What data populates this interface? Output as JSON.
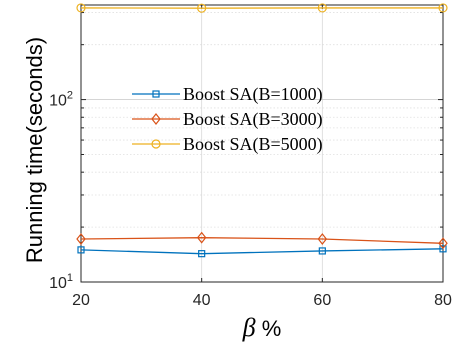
{
  "chart_data": {
    "type": "line",
    "x": [
      20,
      40,
      60,
      80
    ],
    "xticks": [
      "20",
      "40",
      "60",
      "80"
    ],
    "xlim": [
      20,
      80
    ],
    "yscale": "log",
    "ylim": [
      10,
      330
    ],
    "ytick_labels": [
      {
        "value": 10,
        "base": "10",
        "exp": "1"
      },
      {
        "value": 100,
        "base": "10",
        "exp": "2"
      }
    ],
    "xlabel": {
      "symbol": "β",
      "suffix": " %"
    },
    "ylabel": "Running time(seconds)",
    "grid": true,
    "legend_position": "center",
    "series": [
      {
        "name": "Boost SA(B=1000)",
        "values": [
          15.0,
          14.3,
          14.8,
          15.2
        ],
        "color": "#0072BD",
        "marker": "square"
      },
      {
        "name": "Boost SA(B=3000)",
        "values": [
          17.2,
          17.5,
          17.2,
          16.3
        ],
        "color": "#D95319",
        "marker": "diamond"
      },
      {
        "name": "Boost SA(B=5000)",
        "values": [
          318,
          317,
          318,
          318
        ],
        "color": "#EDB120",
        "marker": "circle"
      }
    ]
  }
}
